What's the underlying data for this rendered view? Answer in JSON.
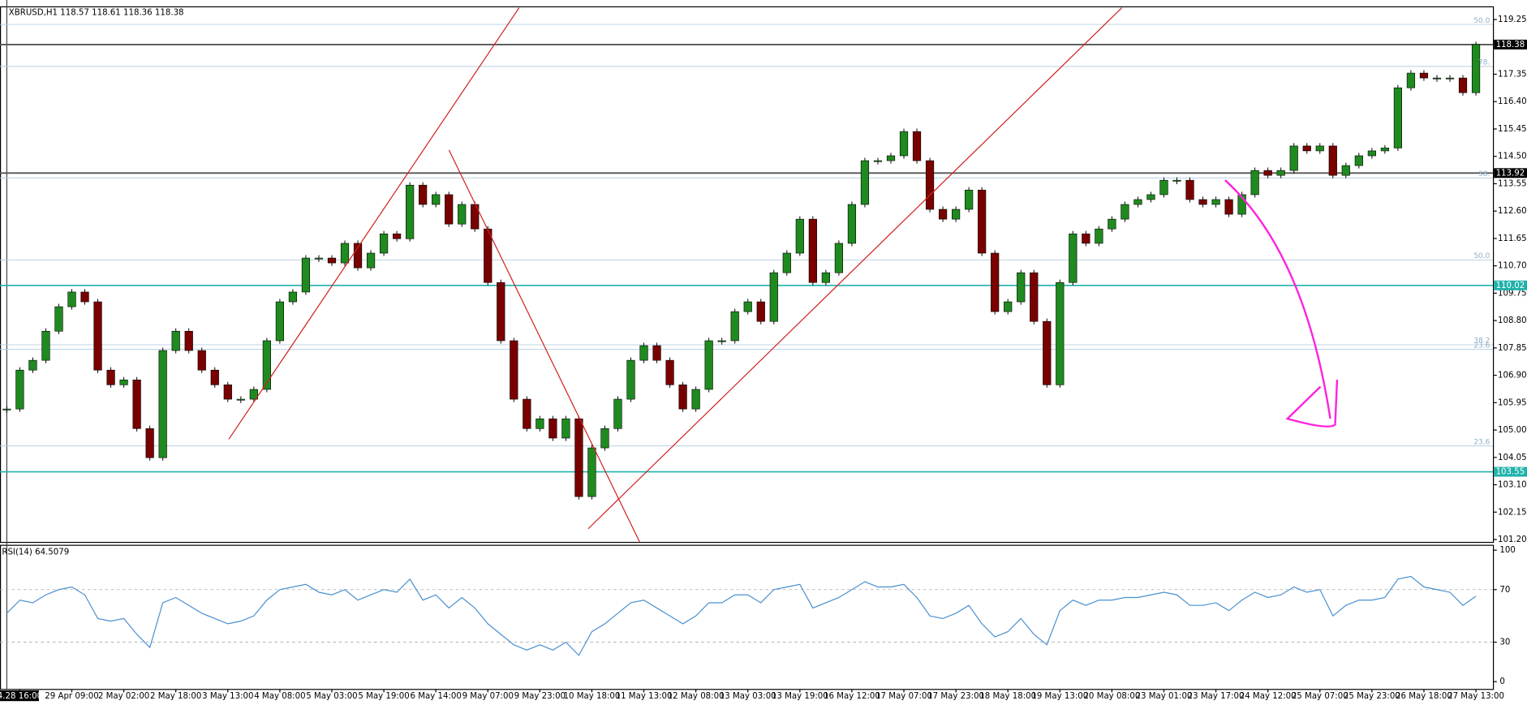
{
  "chart_data": [
    {
      "type": "candlestick",
      "title": "XBRUSD,H1  118.57 118.61 118.36 118.38",
      "categories": [
        null,
        "4.28 16:00",
        null,
        null,
        null,
        "29 Apr 09:00",
        null,
        null,
        null,
        "2 May 02:00",
        null,
        null,
        null,
        "2 May 18:00",
        null,
        null,
        null,
        "3 May 13:00",
        null,
        null,
        null,
        "4 May 08:00",
        null,
        null,
        null,
        "5 May 03:00",
        null,
        null,
        null,
        "5 May 19:00",
        null,
        null,
        null,
        "6 May 14:00",
        null,
        null,
        null,
        "9 May 07:00",
        null,
        null,
        null,
        "9 May 23:00",
        null,
        null,
        null,
        "10 May 18:00",
        null,
        null,
        null,
        "11 May 13:00",
        null,
        null,
        null,
        "12 May 08:00",
        null,
        null,
        null,
        "13 May 03:00",
        null,
        null,
        null,
        "13 May 19:00",
        null,
        null,
        null,
        "16 May 12:00",
        null,
        null,
        null,
        "17 May 07:00",
        null,
        null,
        null,
        "17 May 23:00",
        null,
        null,
        null,
        "18 May 18:00",
        null,
        null,
        null,
        "19 May 13:00",
        null,
        null,
        null,
        "20 May 08:00",
        null,
        null,
        null,
        "23 May 01:00",
        null,
        null,
        null,
        "23 May 17:00",
        null,
        null,
        null,
        "24 May 12:00",
        null,
        null,
        null,
        "25 May 07:00",
        null,
        null,
        null,
        "25 May 23:00",
        null,
        null,
        null,
        "26 May 18:00",
        null,
        null,
        null,
        "27 May 13:00"
      ],
      "close": [
        105.73,
        107.08,
        107.42,
        108.43,
        109.28,
        109.79,
        109.45,
        107.08,
        106.57,
        106.74,
        105.05,
        104.04,
        107.76,
        108.43,
        107.76,
        107.08,
        106.57,
        106.07,
        106.07,
        106.41,
        108.1,
        109.45,
        109.79,
        110.97,
        110.97,
        110.8,
        111.48,
        110.63,
        111.14,
        111.81,
        111.64,
        113.5,
        112.83,
        113.17,
        112.15,
        112.83,
        111.98,
        110.12,
        108.1,
        106.07,
        105.05,
        105.39,
        104.72,
        105.39,
        102.69,
        104.38,
        105.05,
        106.07,
        107.42,
        107.93,
        107.42,
        106.57,
        105.73,
        106.41,
        108.1,
        108.1,
        109.11,
        109.45,
        108.77,
        110.46,
        111.14,
        112.32,
        110.12,
        110.46,
        111.48,
        112.83,
        114.35,
        114.35,
        114.52,
        115.36,
        114.35,
        112.66,
        112.32,
        112.66,
        113.33,
        111.14,
        109.11,
        109.45,
        110.46,
        108.77,
        106.57,
        110.12,
        111.81,
        111.48,
        111.98,
        112.32,
        112.83,
        113.0,
        113.17,
        113.67,
        113.67,
        113.0,
        112.83,
        113.0,
        112.49,
        113.17,
        114.01,
        113.84,
        114.01,
        114.86,
        114.69,
        114.86,
        113.84,
        114.18,
        114.52,
        114.69,
        114.79,
        116.88,
        117.39,
        117.22,
        117.22,
        117.22,
        116.71,
        118.38
      ],
      "up_color": "#1f8a1f",
      "down_color": "#7a0000",
      "ylim": [
        101.1,
        119.69
      ],
      "yticks": [
        119.25,
        117.35,
        {
          "value": 116.4,
          "label": "116.40"
        },
        115.45,
        {
          "value": 114.5,
          "label": "114.50"
        },
        113.55,
        {
          "value": 112.6,
          "label": "112.60"
        },
        111.65,
        {
          "value": 110.7,
          "label": "110.70"
        },
        109.75,
        {
          "value": 108.8,
          "label": "108.80"
        },
        107.85,
        {
          "value": 106.9,
          "label": "106.90"
        },
        105.95,
        {
          "value": 105.0,
          "label": "105.00"
        },
        104.05,
        {
          "value": 103.1,
          "label": "103.10"
        },
        102.15,
        {
          "value": 101.2,
          "label": "101.20"
        }
      ],
      "levels": [
        {
          "value": 118.38,
          "color": "#000000"
        },
        {
          "value": 113.92,
          "color": "#000000"
        },
        {
          "value": 110.02,
          "color": "#20b2aa"
        },
        {
          "value": 103.55,
          "color": "#20b2aa"
        }
      ],
      "fib_levels": [
        {
          "value": 119.08,
          "label": "50.0"
        },
        {
          "value": 117.62,
          "label": "78."
        },
        {
          "value": 113.75,
          "label": "38."
        },
        {
          "value": 110.9,
          "label": "50.0"
        },
        {
          "value": 107.96,
          "label": "38.2"
        },
        {
          "value": 107.8,
          "label": "23.6"
        },
        {
          "value": 104.45,
          "label": "23.6"
        }
      ]
    },
    {
      "type": "line",
      "title": "RSI(14) 64.5079",
      "color": "#4a90d0",
      "values": [
        52,
        62,
        60,
        66,
        70,
        72,
        66,
        48,
        46,
        48,
        36,
        26,
        60,
        64,
        58,
        52,
        48,
        44,
        46,
        50,
        62,
        70,
        72,
        74,
        68,
        66,
        70,
        62,
        66,
        70,
        68,
        78,
        62,
        66,
        56,
        64,
        56,
        44,
        36,
        28,
        24,
        28,
        24,
        30,
        20,
        38,
        44,
        52,
        60,
        62,
        56,
        50,
        44,
        50,
        60,
        60,
        66,
        66,
        60,
        70,
        72,
        74,
        56,
        60,
        64,
        70,
        76,
        72,
        72,
        74,
        64,
        50,
        48,
        52,
        58,
        44,
        34,
        38,
        48,
        36,
        28,
        54,
        62,
        58,
        62,
        62,
        64,
        64,
        66,
        68,
        66,
        58,
        58,
        60,
        54,
        62,
        68,
        64,
        66,
        72,
        68,
        70,
        50,
        58,
        62,
        62,
        64,
        78,
        80,
        72,
        70,
        68,
        58,
        65
      ],
      "ylim": [
        0,
        100
      ],
      "yticks": [
        100,
        70,
        30,
        0
      ],
      "grid": true
    }
  ]
}
